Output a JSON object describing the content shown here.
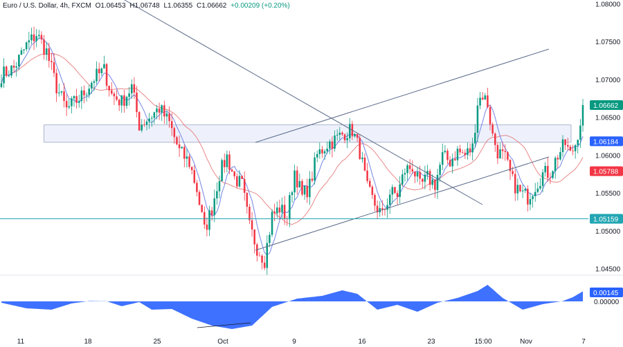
{
  "header": {
    "symbol": "Euro / U.S. Dollar, 4h, FXCM",
    "open": "O1.06453",
    "high": "H1.06748",
    "low": "L1.06355",
    "close": "C1.06662",
    "change": "+0.00209 (+0.20%)"
  },
  "colors": {
    "up": "#089981",
    "down": "#f23645",
    "ma_fast": "#5b6ee1",
    "ma_slow": "#e57373",
    "zone_fill": "#eef1fb",
    "zone_stroke": "#9aa3c4",
    "trendline": "#5c6b8a",
    "support": "#22a6b3",
    "oscillator": "#2962ff"
  },
  "chart_data": {
    "type": "candlestick",
    "y_axis": {
      "ticks": [
        "1.08000",
        "1.07500",
        "1.07000",
        "1.06500",
        "1.06000",
        "1.05500",
        "1.05000",
        "1.04500"
      ],
      "ylim": [
        1.0447,
        1.0805
      ]
    },
    "x_axis": {
      "ticks": [
        "11",
        "18",
        "25",
        "Oct",
        "9",
        "16",
        "23",
        "15:00",
        "Nov",
        "7"
      ]
    },
    "price_labels": [
      {
        "value": 1.06662,
        "text": "1.06662",
        "color": "#089981"
      },
      {
        "value": 1.06184,
        "text": "1.06184",
        "color": "#2962ff"
      },
      {
        "value": 1.05788,
        "text": "1.05788",
        "color": "#f23645"
      },
      {
        "value": 1.05159,
        "text": "1.05159",
        "color": "#22a6b3"
      }
    ],
    "zone": {
      "from_date_index": 17,
      "to_date_index": 150,
      "low": 1.0617,
      "high": 1.064
    },
    "support_level": 1.05159,
    "price_path": [
      [
        0,
        1.0706
      ],
      [
        5,
        1.0715
      ],
      [
        10,
        1.0745
      ],
      [
        14,
        1.076
      ],
      [
        18,
        1.0737
      ],
      [
        22,
        1.069
      ],
      [
        26,
        1.066
      ],
      [
        32,
        1.0678
      ],
      [
        37,
        1.0702
      ],
      [
        41,
        1.0712
      ],
      [
        44,
        1.068
      ],
      [
        48,
        1.067
      ],
      [
        52,
        1.069
      ],
      [
        55,
        1.064
      ],
      [
        59,
        1.065
      ],
      [
        63,
        1.0662
      ],
      [
        67,
        1.0642
      ],
      [
        71,
        1.0605
      ],
      [
        75,
        1.059
      ],
      [
        78,
        1.0555
      ],
      [
        81,
        1.05
      ],
      [
        84,
        1.053
      ],
      [
        87,
        1.0575
      ],
      [
        90,
        1.0598
      ],
      [
        93,
        1.057
      ],
      [
        96,
        1.056
      ],
      [
        99,
        1.0505
      ],
      [
        102,
        1.0478
      ],
      [
        105,
        1.0462
      ],
      [
        108,
        1.052
      ],
      [
        111,
        1.053
      ],
      [
        114,
        1.0518
      ],
      [
        117,
        1.058
      ],
      [
        120,
        1.0545
      ],
      [
        123,
        1.056
      ],
      [
        126,
        1.06
      ],
      [
        130,
        1.0615
      ],
      [
        133,
        1.062
      ],
      [
        137,
        1.063
      ],
      [
        140,
        1.0633
      ],
      [
        143,
        1.0605
      ],
      [
        146,
        1.0555
      ],
      [
        149,
        1.0535
      ],
      [
        152,
        1.052
      ],
      [
        155,
        1.055
      ],
      [
        158,
        1.0548
      ],
      [
        161,
        1.058
      ],
      [
        164,
        1.0585
      ],
      [
        167,
        1.0558
      ],
      [
        170,
        1.057
      ],
      [
        173,
        1.0562
      ],
      [
        176,
        1.0598
      ],
      [
        179,
        1.0592
      ],
      [
        182,
        1.0605
      ],
      [
        185,
        1.06
      ],
      [
        188,
        1.061
      ],
      [
        190,
        1.067
      ],
      [
        192,
        1.068
      ],
      [
        194,
        1.0668
      ],
      [
        196,
        1.0625
      ],
      [
        198,
        1.0605
      ],
      [
        201,
        1.0595
      ],
      [
        204,
        1.0565
      ],
      [
        207,
        1.055
      ],
      [
        210,
        1.0545
      ],
      [
        213,
        1.056
      ],
      [
        216,
        1.0575
      ],
      [
        219,
        1.0578
      ],
      [
        222,
        1.06
      ],
      [
        225,
        1.0615
      ],
      [
        227,
        1.06
      ],
      [
        229,
        1.0615
      ],
      [
        231,
        1.0645
      ],
      [
        232,
        1.0666
      ]
    ],
    "total_bars": 233,
    "indicator": {
      "label": "0.00145",
      "zero_label": "0.00000",
      "path": [
        [
          0,
          -0.0002
        ],
        [
          10,
          -0.001
        ],
        [
          20,
          -0.0012
        ],
        [
          28,
          -0.0003
        ],
        [
          35,
          5e-05
        ],
        [
          42,
          2e-05
        ],
        [
          48,
          -0.0007
        ],
        [
          55,
          -0.0001
        ],
        [
          60,
          -0.0012
        ],
        [
          68,
          -0.0011
        ],
        [
          76,
          -0.0025
        ],
        [
          84,
          -0.0035
        ],
        [
          92,
          -0.004
        ],
        [
          100,
          -0.0035
        ],
        [
          108,
          -0.0008
        ],
        [
          118,
          0.0004
        ],
        [
          128,
          0.0008
        ],
        [
          136,
          0.0016
        ],
        [
          142,
          0.0011
        ],
        [
          150,
          -0.0012
        ],
        [
          158,
          -0.0005
        ],
        [
          166,
          -0.0015
        ],
        [
          174,
          -0.0002
        ],
        [
          182,
          0.0005
        ],
        [
          190,
          0.0015
        ],
        [
          194,
          0.0024
        ],
        [
          200,
          0.0005
        ],
        [
          208,
          -0.0012
        ],
        [
          216,
          -0.0004
        ],
        [
          224,
          5e-05
        ],
        [
          228,
          0.0006
        ],
        [
          232,
          0.00145
        ]
      ]
    }
  }
}
